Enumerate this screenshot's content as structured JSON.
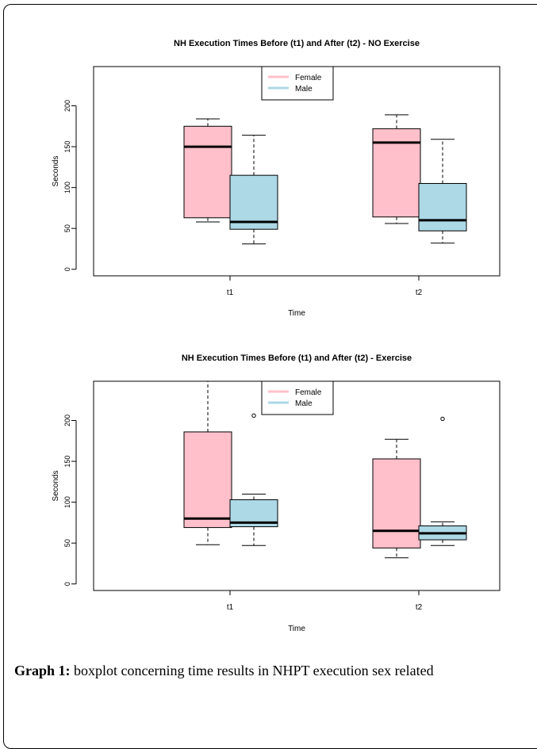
{
  "chart_data": [
    {
      "type": "boxplot",
      "title": "NH Execution Times Before (t1) and After (t2) - NO Exercise",
      "xlabel": "Time",
      "ylabel": "Seconds",
      "ylim": [
        -8,
        248
      ],
      "yticks": [
        "0",
        "50",
        "100",
        "150",
        "200"
      ],
      "categories": [
        "t1",
        "t2"
      ],
      "legend": {
        "position": "top-center",
        "entries": [
          "Female",
          "Male"
        ]
      },
      "series": [
        {
          "name": "Female",
          "color": "#ffc0cb",
          "boxes": [
            {
              "min": 58,
              "q1": 63,
              "median": 150,
              "q3": 175,
              "max": 184,
              "outliers": []
            },
            {
              "min": 56,
              "q1": 64,
              "median": 155,
              "q3": 172,
              "max": 189,
              "outliers": []
            }
          ]
        },
        {
          "name": "Male",
          "color": "#add8e6",
          "boxes": [
            {
              "min": 31,
              "q1": 49,
              "median": 58,
              "q3": 115,
              "max": 164,
              "outliers": []
            },
            {
              "min": 32,
              "q1": 47,
              "median": 60,
              "q3": 105,
              "max": 159,
              "outliers": []
            }
          ]
        }
      ]
    },
    {
      "type": "boxplot",
      "title": "NH Execution Times Before (t1) and After (t2) - Exercise",
      "xlabel": "Time",
      "ylabel": "Seconds",
      "ylim": [
        -8,
        248
      ],
      "yticks": [
        "0",
        "50",
        "100",
        "150",
        "200"
      ],
      "categories": [
        "t1",
        "t2"
      ],
      "legend": {
        "position": "top-center",
        "entries": [
          "Female",
          "Male"
        ]
      },
      "series": [
        {
          "name": "Female",
          "color": "#ffc0cb",
          "boxes": [
            {
              "min": 48,
              "q1": 69,
              "median": 80,
              "q3": 186,
              "max": 248,
              "outliers": []
            },
            {
              "min": 32,
              "q1": 44,
              "median": 65,
              "q3": 153,
              "max": 177,
              "outliers": []
            }
          ]
        },
        {
          "name": "Male",
          "color": "#add8e6",
          "boxes": [
            {
              "min": 47,
              "q1": 70,
              "median": 75,
              "q3": 103,
              "max": 110,
              "outliers": [
                206
              ]
            },
            {
              "min": 47,
              "q1": 54,
              "median": 62,
              "q3": 71,
              "max": 76,
              "outliers": [
                202
              ]
            }
          ]
        }
      ]
    }
  ],
  "caption": {
    "label": "Graph 1:",
    "text": " boxplot concerning time results in NHPT execution sex related"
  }
}
